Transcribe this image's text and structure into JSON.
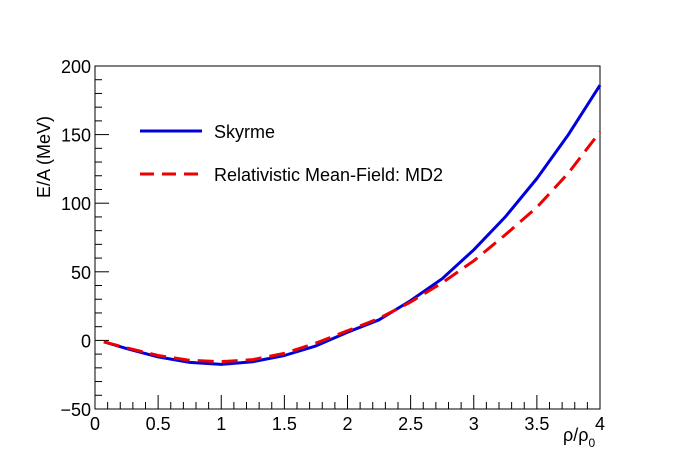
{
  "chart_data": {
    "type": "line",
    "xlabel": "ρ/ρ",
    "xlabel_sub": "0",
    "ylabel": "E/A (MeV)",
    "xlim": [
      0,
      4
    ],
    "ylim": [
      -50,
      200
    ],
    "x_ticks": [
      "0",
      "0.5",
      "1",
      "1.5",
      "2",
      "2.5",
      "3",
      "3.5",
      "4"
    ],
    "y_ticks": [
      "−50",
      "0",
      "50",
      "100",
      "150",
      "200"
    ],
    "grid": false,
    "legend_position": "top-left",
    "series": [
      {
        "name": "Skyrme",
        "color": "#0000dd",
        "style": "solid",
        "x": [
          0.07,
          0.25,
          0.5,
          0.75,
          1.0,
          1.25,
          1.5,
          1.75,
          2.0,
          2.25,
          2.5,
          2.75,
          3.0,
          3.25,
          3.5,
          3.75,
          4.0
        ],
        "y": [
          -1,
          -6,
          -12,
          -16,
          -17.5,
          -15.5,
          -11,
          -4,
          6,
          15,
          29,
          45,
          66,
          90,
          118,
          150,
          186
        ]
      },
      {
        "name": "Relativistic Mean-Field: MD2",
        "color": "#ee0000",
        "style": "dashed",
        "x": [
          0.07,
          0.25,
          0.5,
          0.75,
          1.0,
          1.25,
          1.5,
          1.75,
          2.0,
          2.25,
          2.5,
          2.75,
          3.0,
          3.25,
          3.5,
          3.75,
          4.0
        ],
        "y": [
          -1,
          -5.5,
          -11,
          -14.5,
          -15.5,
          -14,
          -9.5,
          -2,
          7,
          16,
          28,
          42,
          58,
          77,
          97,
          122,
          152
        ]
      }
    ]
  }
}
